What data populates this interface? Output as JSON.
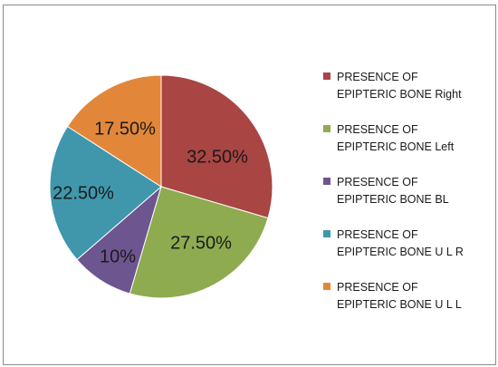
{
  "chart_data": {
    "type": "pie",
    "slices": [
      {
        "legend_line1": "PRESENCE OF",
        "legend_line2": "EPIPTERIC BONE Right",
        "value": 32.5,
        "label": "32.50%",
        "color": "#a94543"
      },
      {
        "legend_line1": "PRESENCE OF",
        "legend_line2": "EPIPTERIC BONE Left",
        "value": 27.5,
        "label": "27.50%",
        "color": "#8eab50"
      },
      {
        "legend_line1": "PRESENCE OF",
        "legend_line2": "EPIPTERIC BONE BL",
        "value": 10,
        "label": "10%",
        "color": "#6d5590"
      },
      {
        "legend_line1": "PRESENCE OF",
        "legend_line2": "EPIPTERIC BONE U L R",
        "value": 22.5,
        "label": "22.50%",
        "color": "#4097ab"
      },
      {
        "legend_line1": "PRESENCE OF",
        "legend_line2": "EPIPTERIC BONE U L L",
        "value": 17.5,
        "label": "17.50%",
        "color": "#e2873a"
      }
    ],
    "start_angle": "12 o'clock",
    "direction": "clockwise",
    "legend_position": "right"
  }
}
